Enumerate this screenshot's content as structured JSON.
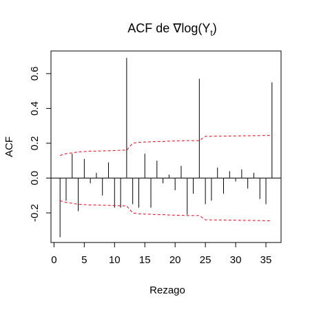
{
  "chart_data": {
    "type": "bar",
    "title_main": "ACF de ∇log(Y",
    "title_sub": "t",
    "title_close": ")",
    "xlabel": "Rezago",
    "ylabel": "ACF",
    "xlim": [
      -0.5,
      37.5
    ],
    "ylim": [
      -0.37,
      0.73
    ],
    "x_ticks": [
      0,
      5,
      10,
      15,
      20,
      25,
      30,
      35
    ],
    "y_ticks": [
      -0.2,
      0.0,
      0.2,
      0.4,
      0.6
    ],
    "y_tick_labels": [
      "-0.2",
      "0.0",
      "0.2",
      "0.4",
      "0.6"
    ],
    "lags": [
      1,
      2,
      3,
      4,
      5,
      6,
      7,
      8,
      9,
      10,
      11,
      12,
      13,
      14,
      15,
      16,
      17,
      18,
      19,
      20,
      21,
      22,
      23,
      24,
      25,
      26,
      27,
      28,
      29,
      30,
      31,
      32,
      33,
      34,
      35,
      36
    ],
    "acf": [
      -0.34,
      -0.13,
      0.14,
      -0.19,
      0.11,
      -0.03,
      0.03,
      -0.1,
      0.09,
      -0.17,
      -0.17,
      0.69,
      -0.15,
      -0.17,
      0.14,
      -0.17,
      0.1,
      -0.03,
      0.02,
      -0.07,
      0.07,
      -0.21,
      -0.09,
      0.57,
      -0.15,
      -0.13,
      0.06,
      -0.09,
      0.04,
      -0.02,
      0.05,
      -0.06,
      0.03,
      -0.12,
      -0.15,
      0.55
    ],
    "confidence_band": [
      0.13,
      0.14,
      0.145,
      0.15,
      0.152,
      0.155,
      0.155,
      0.156,
      0.157,
      0.158,
      0.16,
      0.16,
      0.2,
      0.205,
      0.207,
      0.208,
      0.21,
      0.21,
      0.212,
      0.213,
      0.214,
      0.215,
      0.215,
      0.215,
      0.24,
      0.24,
      0.241,
      0.241,
      0.242,
      0.242,
      0.243,
      0.243,
      0.244,
      0.244,
      0.245,
      0.245
    ],
    "band_color": "#e0001a",
    "bar_color": "#000000",
    "grid": false
  }
}
